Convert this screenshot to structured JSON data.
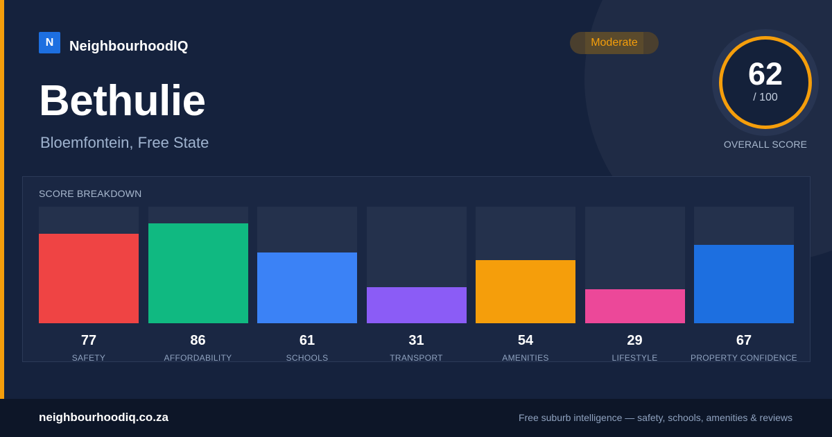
{
  "brand": {
    "logo_letter": "N",
    "name": "NeighbourhoodIQ",
    "accent_color": "#f59e0b",
    "logo_color": "#1d6fe0"
  },
  "suburb": {
    "name": "Bethulie",
    "location": "Bloemfontein, Free State"
  },
  "rating": {
    "label": "Moderate",
    "color": "#f59e0b"
  },
  "overall": {
    "score": "62",
    "max": "/ 100",
    "caption": "OVERALL SCORE"
  },
  "breakdown": {
    "title": "SCORE BREAKDOWN",
    "max": 100,
    "metrics": [
      {
        "key": "safety",
        "label": "SAFETY",
        "value": 77,
        "color": "#ef4444"
      },
      {
        "key": "affordability",
        "label": "AFFORDABILITY",
        "value": 86,
        "color": "#10b981"
      },
      {
        "key": "schools",
        "label": "SCHOOLS",
        "value": 61,
        "color": "#3b82f6"
      },
      {
        "key": "transport",
        "label": "TRANSPORT",
        "value": 31,
        "color": "#8b5cf6"
      },
      {
        "key": "amenities",
        "label": "AMENITIES",
        "value": 54,
        "color": "#f59e0b"
      },
      {
        "key": "lifestyle",
        "label": "LIFESTYLE",
        "value": 29,
        "color": "#ec4899"
      },
      {
        "key": "property-confidence",
        "label": "PROPERTY CONFIDENCE",
        "value": 67,
        "color": "#1d6fe0"
      }
    ]
  },
  "footer": {
    "url": "neighbourhoodiq.co.za",
    "tagline": "Free suburb intelligence — safety, schools, amenities & reviews"
  }
}
